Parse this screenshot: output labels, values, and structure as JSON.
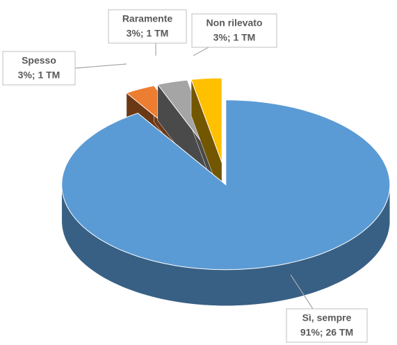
{
  "chart_data": {
    "type": "pie3d",
    "categories": [
      "Sì, sempre",
      "Spesso",
      "Raramente",
      "Non rilevato"
    ],
    "values": [
      91,
      3,
      3,
      3
    ],
    "value_labels": [
      "91%; 26 TM",
      "3%; 1 TM",
      "3%; 1 TM",
      "3%; 1 TM"
    ],
    "colors": [
      "#5b9bd5",
      "#ed7d31",
      "#a5a5a5",
      "#ffc000"
    ]
  }
}
